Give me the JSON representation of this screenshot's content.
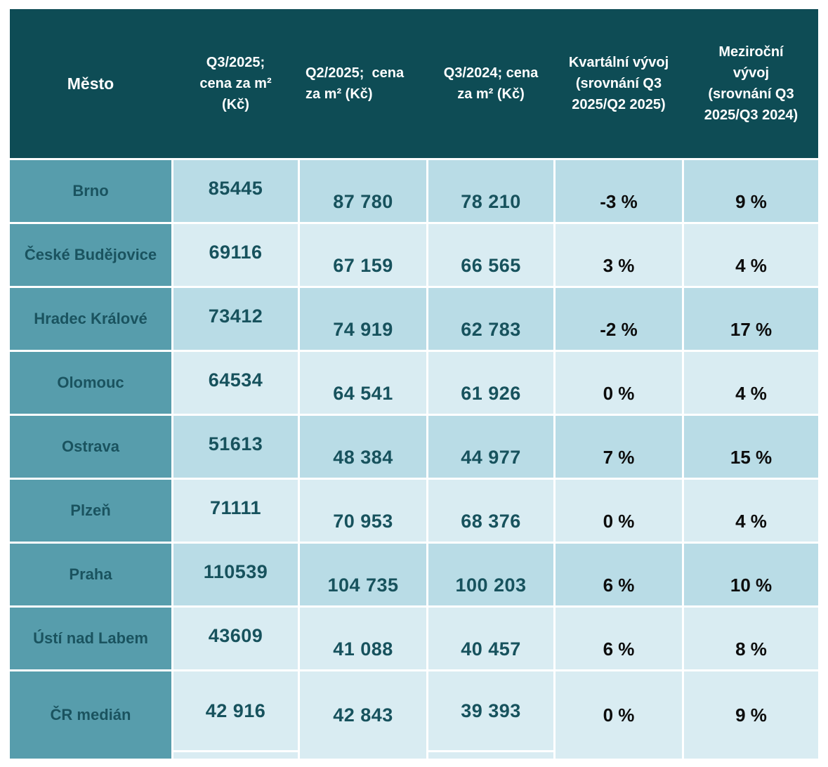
{
  "colors": {
    "header_bg": "#0e4c55",
    "header_fg": "#ffffff",
    "label_bg": "#579dac",
    "band_dark": "#b9dce6",
    "band_light": "#d9ecf2",
    "city_fg": "#1a535f",
    "value_fg": "#17525d",
    "pct_fg": "#0d0d0d",
    "page_bg": "#ffffff"
  },
  "table": {
    "header": {
      "city": "Město",
      "q3_2025": "Q3/2025;\ncena za m²\n(Kč)",
      "q2_2025": "Q2/2025;  cena\nza m² (Kč)",
      "q3_2024": "Q3/2024; cena\nza m² (Kč)",
      "qoq": "Kvartální vývoj\n(srovnání Q3\n2025/Q2 2025)",
      "yoy": "Meziroční\nvývoj\n(srovnání Q3\n2025/Q3 2024)"
    },
    "rows": [
      {
        "city": "Brno",
        "q3_2025": "85445",
        "q2_2025": "87 780",
        "q3_2024": "78 210",
        "qoq": "-3 %",
        "yoy": "9 %"
      },
      {
        "city": "České Budějovice",
        "q3_2025": "69116",
        "q2_2025": "67 159",
        "q3_2024": "66 565",
        "qoq": "3 %",
        "yoy": "4 %"
      },
      {
        "city": "Hradec Králové",
        "q3_2025": "73412",
        "q2_2025": "74 919",
        "q3_2024": "62 783",
        "qoq": "-2 %",
        "yoy": "17 %"
      },
      {
        "city": "Olomouc",
        "q3_2025": "64534",
        "q2_2025": "64 541",
        "q3_2024": "61 926",
        "qoq": "0 %",
        "yoy": "4 %"
      },
      {
        "city": "Ostrava",
        "q3_2025": "51613",
        "q2_2025": "48 384",
        "q3_2024": "44 977",
        "qoq": "7 %",
        "yoy": "15 %"
      },
      {
        "city": "Plzeň",
        "q3_2025": "71111",
        "q2_2025": "70 953",
        "q3_2024": "68 376",
        "qoq": "0 %",
        "yoy": "4 %"
      },
      {
        "city": "Praha",
        "q3_2025": "110539",
        "q2_2025": "104 735",
        "q3_2024": "100 203",
        "qoq": "6 %",
        "yoy": "10 %"
      },
      {
        "city": "Ústí nad Labem",
        "q3_2025": "43609",
        "q2_2025": "41 088",
        "q3_2024": "40 457",
        "qoq": "6 %",
        "yoy": "8 %"
      },
      {
        "city": "ČR medián",
        "q3_2025": "42 916",
        "q2_2025": "42 843",
        "q3_2024": "39 393",
        "qoq": "0 %",
        "yoy": "9 %"
      }
    ]
  },
  "chart_data": {
    "type": "table",
    "title": "",
    "columns": [
      "Město",
      "Q3/2025; cena za m² (Kč)",
      "Q2/2025; cena za m² (Kč)",
      "Q3/2024; cena za m² (Kč)",
      "Kvartální vývoj (srovnání Q3 2025/Q2 2025)",
      "Meziroční vývoj (srovnání Q3 2025/Q3 2024)"
    ],
    "rows": [
      [
        "Brno",
        85445,
        87780,
        78210,
        "-3 %",
        "9 %"
      ],
      [
        "České Budějovice",
        69116,
        67159,
        66565,
        "3 %",
        "4 %"
      ],
      [
        "Hradec Králové",
        73412,
        74919,
        62783,
        "-2 %",
        "17 %"
      ],
      [
        "Olomouc",
        64534,
        64541,
        61926,
        "0 %",
        "4 %"
      ],
      [
        "Ostrava",
        51613,
        48384,
        44977,
        "7 %",
        "15 %"
      ],
      [
        "Plzeň",
        71111,
        70953,
        68376,
        "0 %",
        "4 %"
      ],
      [
        "Praha",
        110539,
        104735,
        100203,
        "6 %",
        "10 %"
      ],
      [
        "Ústí nad Labem",
        43609,
        41088,
        40457,
        "6 %",
        "8 %"
      ],
      [
        "ČR medián",
        42916,
        42843,
        39393,
        "0 %",
        "9 %"
      ]
    ]
  }
}
